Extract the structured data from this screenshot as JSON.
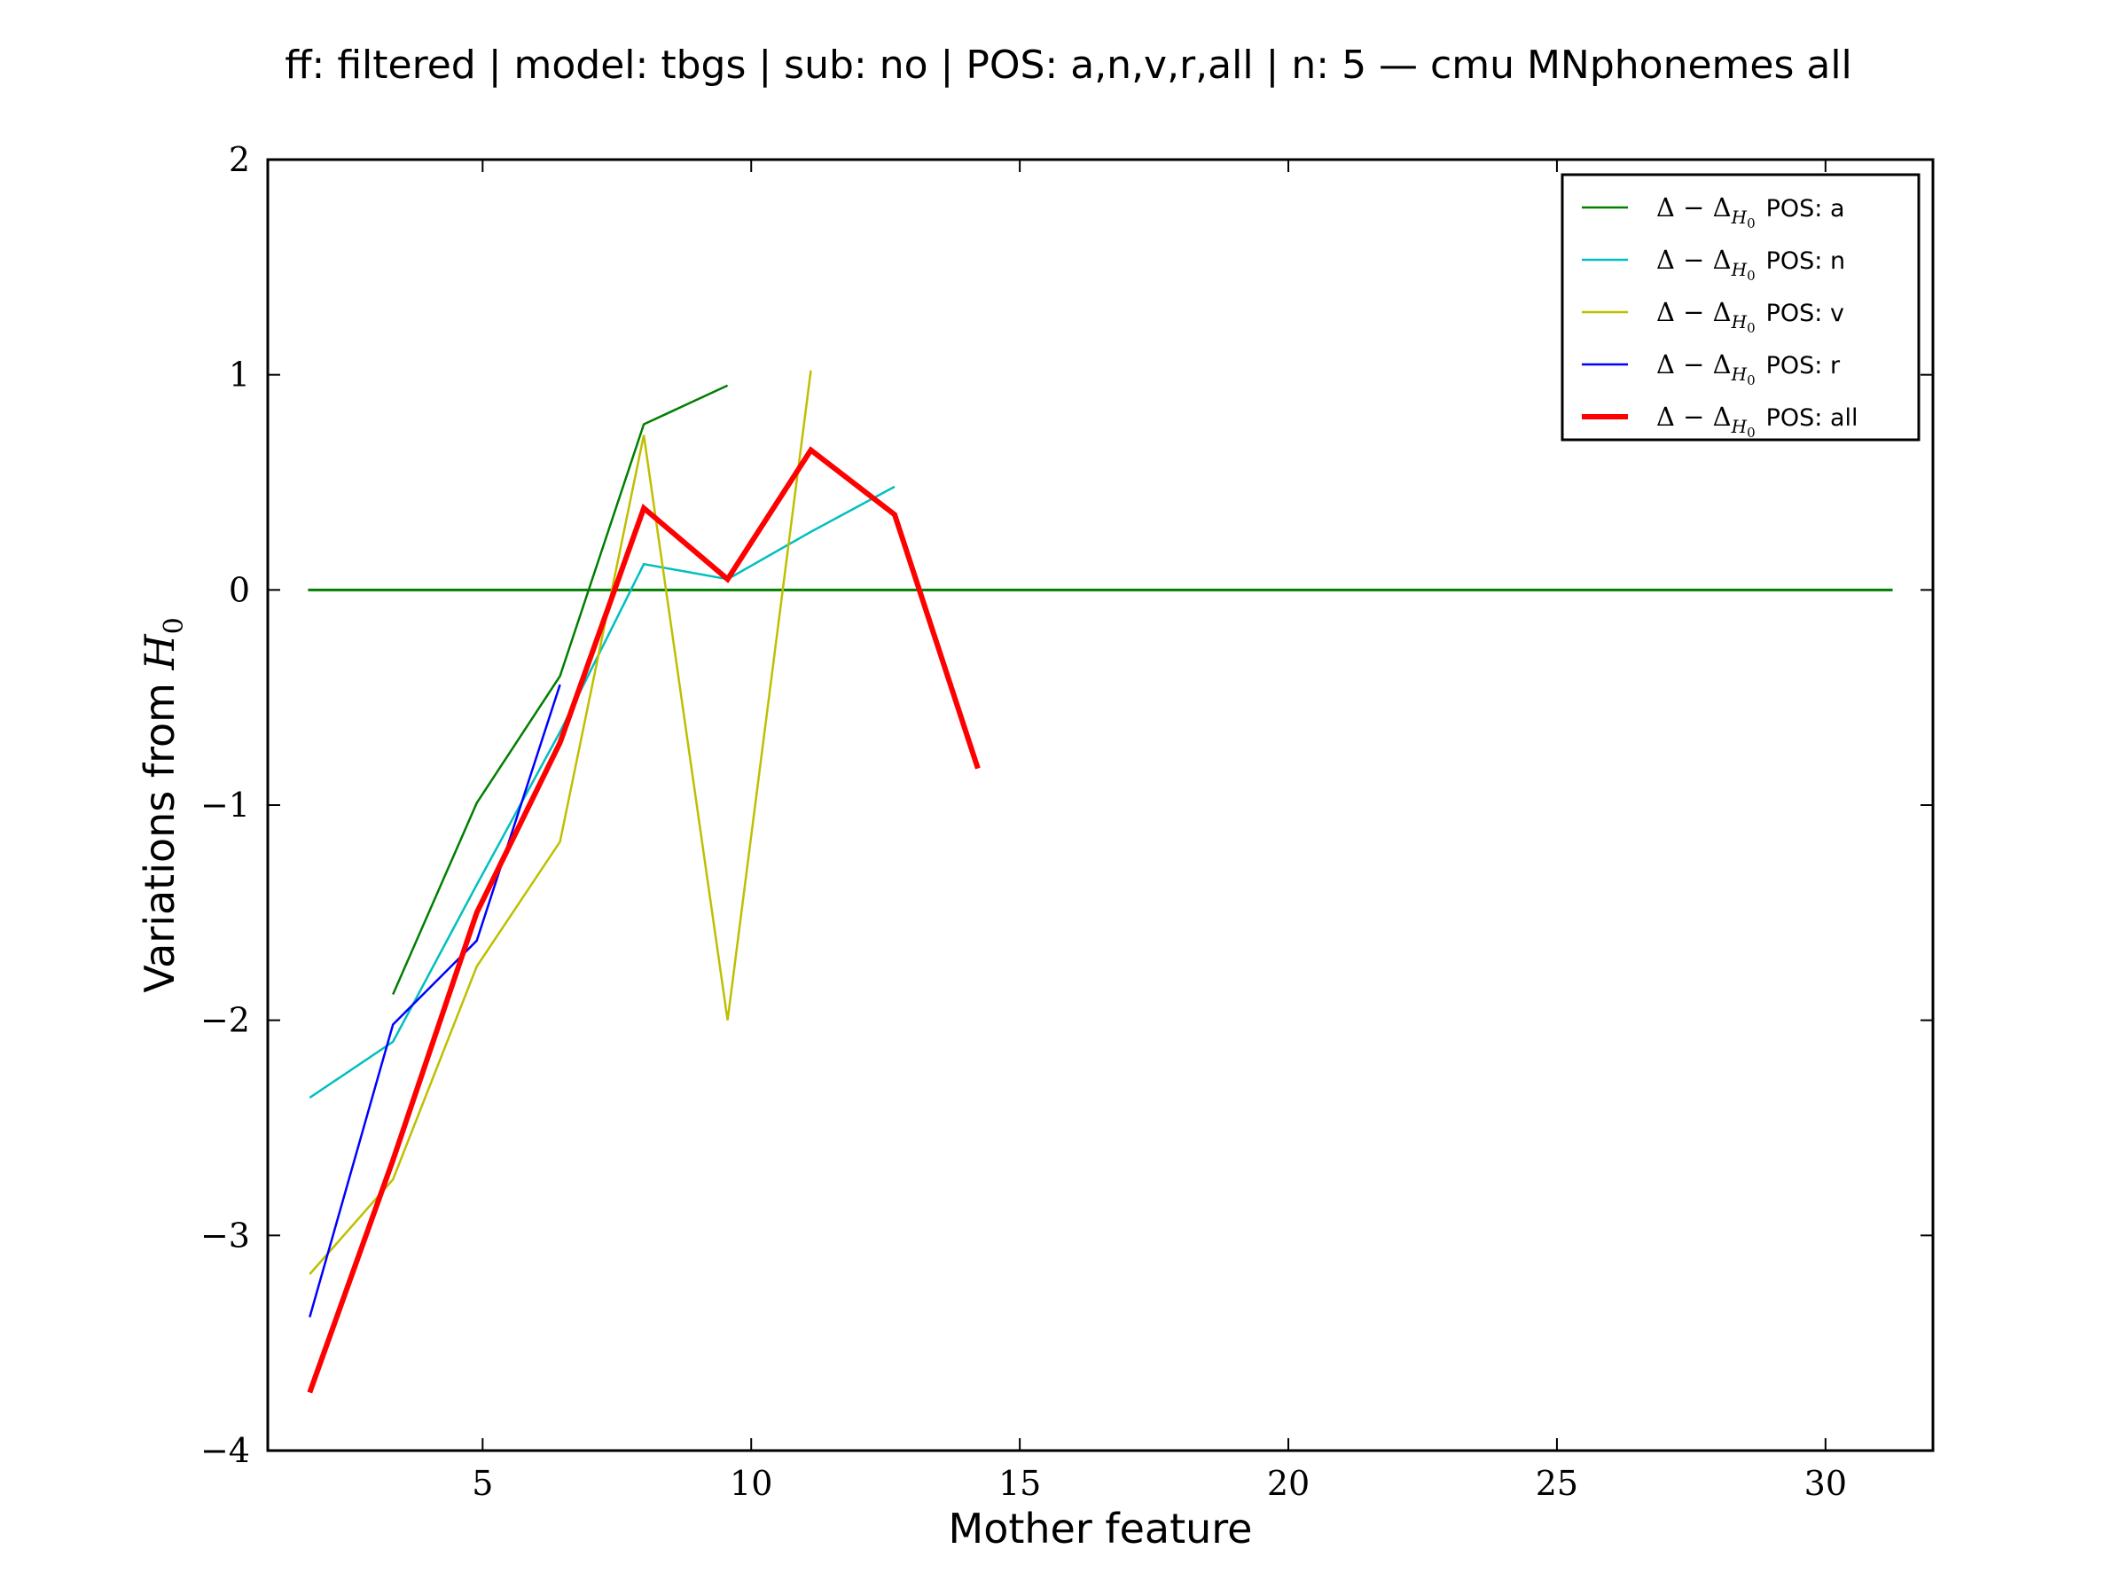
{
  "chart_data": {
    "type": "line",
    "title": "ff: filtered | model: tbgs | sub: no | POS: a,n,v,r,all | n: 5 — cmu MNphonemes all",
    "xlabel": "Mother feature",
    "ylabel_text": "Variations from ",
    "ylabel_math": "H",
    "ylabel_sub": "0",
    "xlim": [
      1,
      32
    ],
    "ylim": [
      -4,
      2
    ],
    "xticks": [
      5,
      10,
      15,
      20,
      25,
      30
    ],
    "yticks": [
      -4,
      -3,
      -2,
      -1,
      0,
      1,
      2
    ],
    "xtick_labels": [
      "5",
      "10",
      "15",
      "20",
      "25",
      "30"
    ],
    "ytick_labels": [
      "−4",
      "−3",
      "−2",
      "−1",
      "0",
      "1",
      "2"
    ],
    "legend_position": "top-right",
    "legend_prefix": "Δ − Δ",
    "legend_sub": "H",
    "legend_sub2": "0",
    "baseline": {
      "name": "zero-line",
      "y": 0,
      "x": [
        1.75,
        31.25
      ],
      "color": "#007f00"
    },
    "series": [
      {
        "name": "POS: a",
        "color": "#007f00",
        "width": 2.5,
        "x": [
          3.33,
          4.89,
          6.44,
          8.0,
          9.56
        ],
        "y": [
          -1.88,
          -0.99,
          -0.4,
          0.77,
          0.95
        ]
      },
      {
        "name": "POS: n",
        "color": "#00bfbf",
        "width": 2.5,
        "x": [
          1.78,
          3.33,
          4.89,
          6.44,
          8.0,
          9.56,
          11.11,
          12.67
        ],
        "y": [
          -2.36,
          -2.1,
          -1.37,
          -0.66,
          0.12,
          0.05,
          0.27,
          0.48
        ]
      },
      {
        "name": "POS: v",
        "color": "#bfbf00",
        "width": 2.5,
        "x": [
          1.78,
          3.33,
          4.89,
          6.44,
          8.0,
          9.56,
          11.11
        ],
        "y": [
          -3.18,
          -2.74,
          -1.75,
          -1.17,
          0.72,
          -2.0,
          1.02
        ]
      },
      {
        "name": "POS: r",
        "color": "#0000ff",
        "width": 2.5,
        "x": [
          1.78,
          3.33,
          4.89,
          6.44
        ],
        "y": [
          -3.38,
          -2.02,
          -1.63,
          -0.44
        ]
      },
      {
        "name": "POS: all",
        "color": "#ff0000",
        "width": 6,
        "x": [
          1.78,
          3.33,
          4.89,
          6.44,
          8.0,
          9.56,
          11.11,
          12.67,
          14.22
        ],
        "y": [
          -3.73,
          -2.65,
          -1.5,
          -0.71,
          0.38,
          0.05,
          0.65,
          0.35,
          -0.83
        ]
      }
    ]
  }
}
